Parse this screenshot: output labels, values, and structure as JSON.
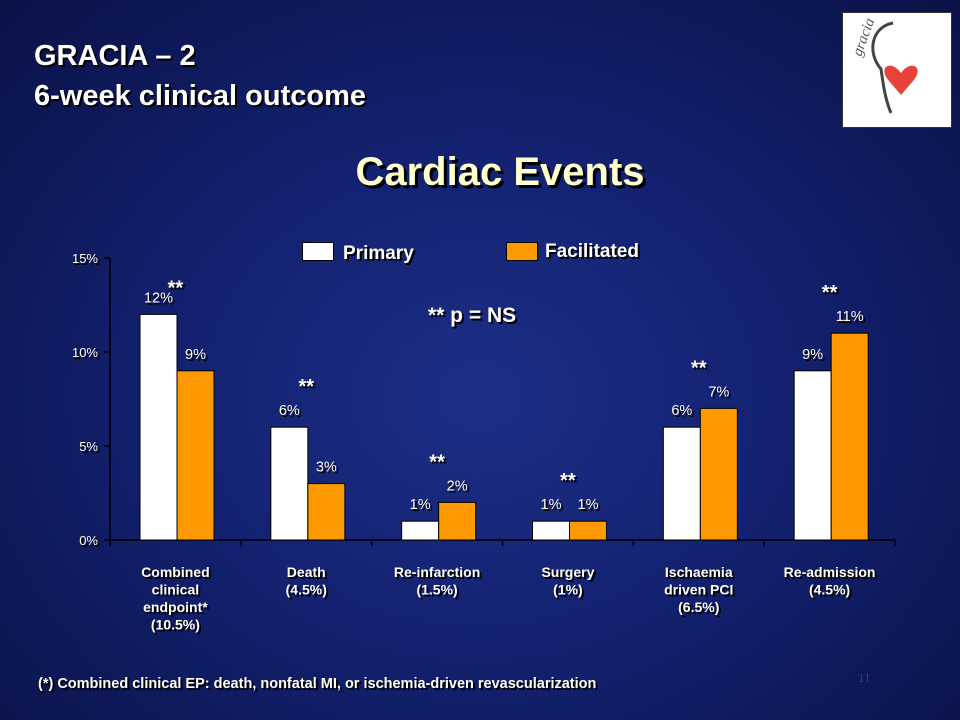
{
  "header": {
    "title_line1": "GRACIA – 2",
    "title_line2": "6-week clinical  outcome"
  },
  "heading": "Cardiac Events",
  "logo": {
    "text": "gracia",
    "icon": "heart-logo-icon"
  },
  "legend": [
    {
      "label": "Primary",
      "color": "#ffffff"
    },
    {
      "label": "Facilitated",
      "color": "#ff9900"
    }
  ],
  "significance_note": "** p = NS",
  "footnote": "(*) Combined  clinical  EP: death,  nonfatal  MI, or ischemia-driven  revascularization",
  "slide_number": "11",
  "chart_data": {
    "type": "bar",
    "categories": [
      [
        "Combined",
        "clinical",
        "endpoint*",
        "(10.5%)"
      ],
      [
        "Death",
        "(4.5%)"
      ],
      [
        "Re-infarction",
        "(1.5%)"
      ],
      [
        "Surgery",
        "(1%)"
      ],
      [
        "Ischaemia",
        "driven PCI",
        "(6.5%)"
      ],
      [
        "Re-admission",
        "(4.5%)"
      ]
    ],
    "series": [
      {
        "name": "Primary",
        "values": [
          12,
          6,
          1,
          1,
          6,
          9
        ],
        "labels": [
          "12%",
          "6%",
          "1%",
          "1%",
          "6%",
          "9%"
        ],
        "color": "#ffffff"
      },
      {
        "name": "Facilitated",
        "values": [
          9,
          3,
          2,
          1,
          7,
          11
        ],
        "labels": [
          "9%",
          "3%",
          "2%",
          "1%",
          "7%",
          "11%"
        ],
        "color": "#ff9900"
      }
    ],
    "annotations": [
      "**",
      "**",
      "**",
      "**",
      "**",
      "**"
    ],
    "ylim": [
      0,
      15
    ],
    "yticks": [
      0,
      5,
      10,
      15
    ],
    "ytick_labels": [
      "0%",
      "5%",
      "10%",
      "15%"
    ],
    "grid": false
  }
}
